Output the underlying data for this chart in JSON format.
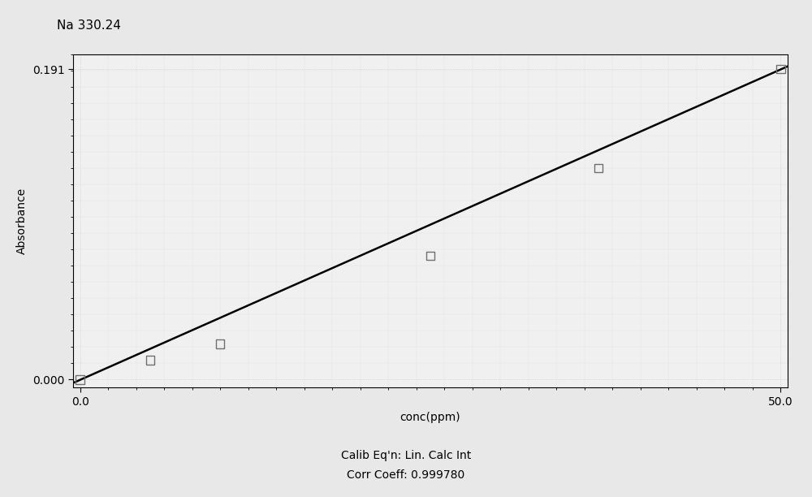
{
  "title": "Na 330.24",
  "xlabel": "conc(ppm)",
  "ylabel": "Absorbance",
  "xlim": [
    -0.5,
    50.5
  ],
  "ylim": [
    -0.005,
    0.2
  ],
  "xticks": [
    0.0,
    50.0
  ],
  "yticks": [
    0.0,
    0.191
  ],
  "data_x": [
    0.0,
    5.0,
    10.0,
    25.0,
    37.0,
    50.0
  ],
  "data_y": [
    0.0,
    0.012,
    0.022,
    0.076,
    0.13,
    0.191
  ],
  "slope": 0.003822,
  "intercept": -0.0002,
  "line_x": [
    -0.5,
    50.5
  ],
  "line_color": "#000000",
  "marker_facecolor": "none",
  "marker_edgecolor": "#707070",
  "fig_bg_color": "#e8e8e8",
  "plot_bg_color": "#f0f0f0",
  "dot_color": "#c8c8c8",
  "calib_text_line1": "Calib Eq'n: Lin. Calc Int",
  "calib_text_line2": "Corr Coeff: 0.999780",
  "title_fontsize": 11,
  "axis_label_fontsize": 10,
  "tick_fontsize": 10,
  "calib_fontsize": 10
}
